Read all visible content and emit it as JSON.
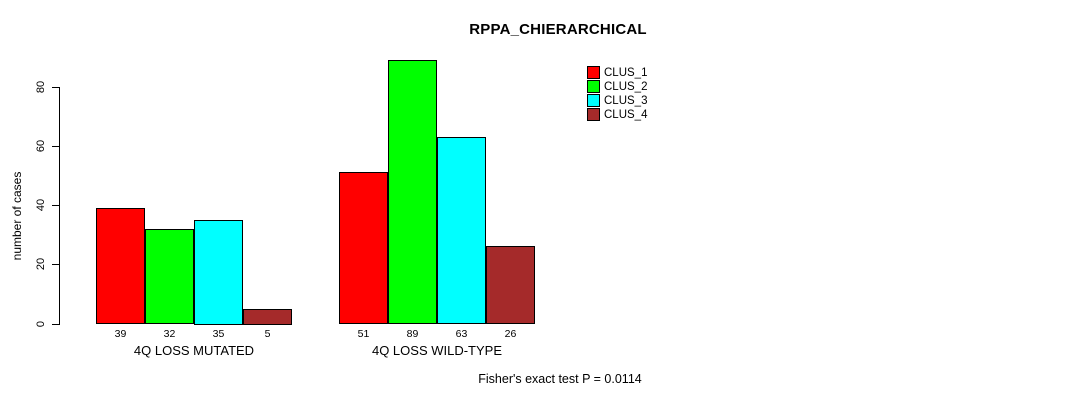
{
  "chart_data": {
    "type": "bar",
    "title": "RPPA_CHIERARCHICAL",
    "ylabel": "number of cases",
    "xlabel": "",
    "ylim": [
      0,
      80
    ],
    "yticks": [
      0,
      20,
      40,
      60,
      80
    ],
    "grid": false,
    "legend_position": "top-right",
    "categories": [
      "4Q LOSS MUTATED",
      "4Q LOSS WILD-TYPE"
    ],
    "series": [
      {
        "name": "CLUS_1",
        "color": "#FF0000",
        "values": [
          39,
          51
        ]
      },
      {
        "name": "CLUS_2",
        "color": "#00FF00",
        "values": [
          32,
          89
        ]
      },
      {
        "name": "CLUS_3",
        "color": "#00FFFF",
        "values": [
          35,
          63
        ]
      },
      {
        "name": "CLUS_4",
        "color": "#A52A2A",
        "values": [
          5,
          26
        ]
      }
    ],
    "bar_value_labels": [
      [
        39,
        32,
        35,
        5
      ],
      [
        51,
        89,
        63,
        26
      ]
    ],
    "annotation": "Fisher's exact test P = 0.0114"
  },
  "colors": {
    "background": "#FFFFFF",
    "axis": "#000000",
    "text": "#000000"
  }
}
